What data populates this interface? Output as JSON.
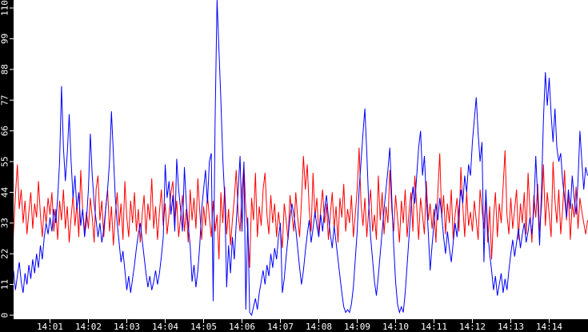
{
  "window": {
    "title": "network traffic strip chart"
  },
  "axes_style": {
    "strip_color": "#000000",
    "tick_color": "#ffffff",
    "label_color": "#ffffff",
    "plot_background": "#ffffff",
    "series_red": "#ff0000",
    "series_blue": "#0000ff"
  },
  "chart_data": {
    "type": "line",
    "title": "",
    "xlabel": "",
    "ylabel": "",
    "x_start": "14:00",
    "x_end": "14:15",
    "x_tick_labels": [
      "14:01",
      "14:02",
      "14:03",
      "14:04",
      "14:05",
      "14:06",
      "14:07",
      "14:08",
      "14:09",
      "14:10",
      "14:11",
      "14:12",
      "14:13",
      "14:14"
    ],
    "y_ticks": [
      0,
      11,
      22,
      33,
      44,
      55,
      66,
      77,
      88,
      99,
      110
    ],
    "ylim": [
      0,
      110
    ],
    "grid": false,
    "legend": "none",
    "sample_interval_seconds": 3,
    "series": [
      {
        "name": "red-series",
        "color": "#ff0000",
        "values": [
          10,
          30,
          43,
          54,
          38,
          45,
          33,
          41,
          29,
          37,
          44,
          31,
          40,
          35,
          48,
          36,
          28,
          39,
          33,
          42,
          36,
          44,
          30,
          38,
          27,
          41,
          34,
          45,
          31,
          39,
          26,
          35,
          43,
          32,
          40,
          28,
          52,
          38,
          30,
          37,
          31,
          42,
          35,
          26,
          45,
          50,
          34,
          41,
          28,
          38,
          45,
          30,
          39,
          25,
          36,
          44,
          32,
          40,
          27,
          48,
          35,
          28,
          41,
          33,
          44,
          30,
          38,
          26,
          36,
          43,
          29,
          40,
          34,
          49,
          31,
          39,
          27,
          37,
          45,
          32,
          40,
          29,
          36,
          44,
          48,
          33,
          41,
          28,
          35,
          43,
          30,
          38,
          26,
          45,
          34,
          42,
          31,
          49,
          37,
          27,
          39,
          32,
          43,
          35,
          28,
          41,
          30,
          36,
          20,
          44,
          33,
          46,
          29,
          38,
          25,
          34,
          42,
          52,
          36,
          30,
          45,
          54,
          38,
          30,
          17,
          42,
          34,
          51,
          28,
          39,
          32,
          45,
          51,
          36,
          29,
          43,
          33,
          40,
          28,
          37,
          31,
          24,
          40,
          34,
          27,
          43,
          36,
          30,
          44,
          35,
          28,
          41,
          57,
          45,
          54,
          38,
          30,
          51,
          35,
          42,
          29,
          38,
          45,
          33,
          40,
          27,
          36,
          44,
          31,
          39,
          26,
          42,
          35,
          47,
          30,
          38,
          33,
          43,
          28,
          36,
          45,
          60,
          40,
          32,
          42,
          28,
          38,
          45,
          30,
          36,
          27,
          50,
          34,
          44,
          29,
          39,
          33,
          52,
          38,
          30,
          43,
          35,
          26,
          41,
          33,
          45,
          28,
          37,
          44,
          30,
          50,
          39,
          27,
          42,
          36,
          29,
          48,
          34,
          40,
          31,
          38,
          26,
          44,
          58,
          35,
          43,
          29,
          40,
          33,
          45,
          27,
          36,
          42,
          30,
          53,
          39,
          28,
          44,
          32,
          37,
          30,
          41,
          34,
          27,
          45,
          38,
          31,
          43,
          26,
          39,
          20,
          35,
          44,
          28,
          40,
          33,
          46,
          59,
          36,
          29,
          42,
          31,
          38,
          45,
          27,
          40,
          33,
          44,
          29,
          51,
          37,
          26,
          43,
          35,
          47,
          30,
          39,
          54,
          32,
          44,
          36,
          28,
          55,
          41,
          33,
          45,
          29,
          38,
          52,
          34,
          43,
          27,
          40,
          35,
          46,
          31,
          42,
          37,
          33,
          29,
          34
        ]
      },
      {
        "name": "blue-series",
        "color": "#0000ff",
        "values": [
          11,
          16,
          9,
          14,
          19,
          12,
          8,
          15,
          11,
          18,
          13,
          20,
          15,
          22,
          17,
          25,
          20,
          28,
          33,
          29,
          35,
          30,
          38,
          33,
          42,
          55,
          82,
          60,
          48,
          58,
          72,
          55,
          42,
          50,
          38,
          44,
          32,
          38,
          28,
          34,
          45,
          65,
          50,
          40,
          34,
          28,
          33,
          26,
          31,
          38,
          45,
          55,
          73,
          58,
          42,
          33,
          26,
          19,
          23,
          16,
          9,
          14,
          8,
          13,
          18,
          24,
          29,
          33,
          27,
          21,
          15,
          10,
          14,
          9,
          12,
          16,
          11,
          15,
          21,
          28,
          54,
          42,
          48,
          36,
          43,
          30,
          56,
          45,
          38,
          30,
          53,
          40,
          32,
          25,
          12,
          18,
          10,
          16,
          25,
          38,
          45,
          52,
          40,
          55,
          58,
          5,
          70,
          113,
          95,
          77,
          56,
          42,
          10,
          25,
          15,
          28,
          20,
          33,
          45,
          57,
          30,
          55,
          2,
          35,
          1,
          0,
          3,
          6,
          2,
          8,
          12,
          16,
          11,
          18,
          14,
          22,
          17,
          24,
          20,
          28,
          33,
          8,
          13,
          21,
          28,
          35,
          40,
          36,
          31,
          24,
          17,
          11,
          16,
          23,
          29,
          34,
          26,
          31,
          37,
          32,
          28,
          36,
          30,
          38,
          43,
          35,
          29,
          24,
          32,
          26,
          20,
          14,
          8,
          3,
          1,
          2,
          1,
          4,
          10,
          20,
          30,
          45,
          55,
          65,
          74,
          58,
          40,
          28,
          20,
          12,
          7,
          14,
          22,
          30,
          38,
          45,
          52,
          60,
          42,
          25,
          12,
          4,
          1,
          3,
          1,
          8,
          18,
          28,
          38,
          46,
          40,
          50,
          60,
          66,
          50,
          57,
          42,
          30,
          16,
          25,
          33,
          40,
          34,
          42,
          36,
          28,
          22,
          30,
          24,
          19,
          26,
          33,
          28,
          38,
          45,
          40,
          50,
          44,
          54,
          50,
          62,
          70,
          78,
          65,
          55,
          62,
          19,
          45,
          30,
          22,
          16,
          9,
          14,
          7,
          11,
          15,
          8,
          13,
          9,
          16,
          22,
          27,
          21,
          26,
          31,
          24,
          29,
          33,
          26,
          30,
          35,
          29,
          38,
          57,
          42,
          25,
          45,
          70,
          87,
          75,
          85,
          72,
          62,
          74,
          60,
          55,
          58,
          48,
          42,
          35,
          45,
          38,
          50,
          42,
          36,
          48,
          66,
          55,
          45,
          53,
          50
        ]
      }
    ]
  }
}
